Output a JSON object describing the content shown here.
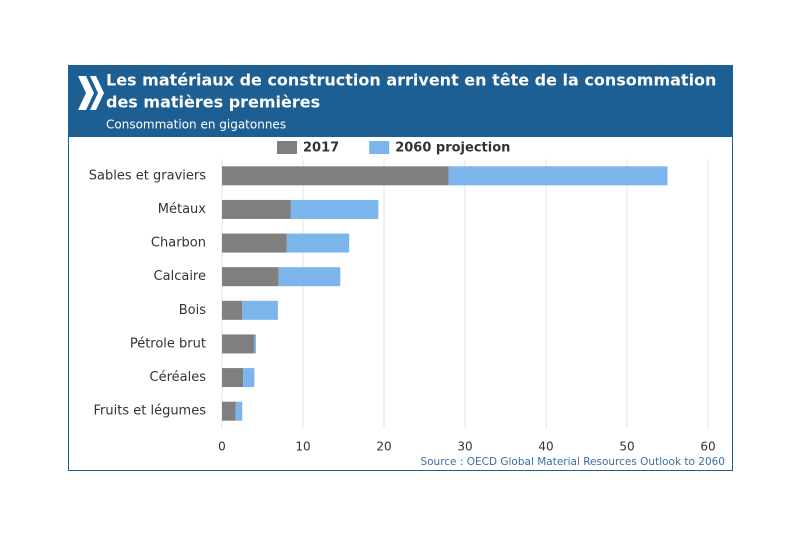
{
  "chart_data": {
    "type": "stacked-barh",
    "title": [
      "Les matériaux de construction arrivent en tête de la consommation",
      "des matières premières"
    ],
    "subtitle": "Consommation en gigatonnes",
    "source": "Source : OECD Global Material Resources Outlook to 2060",
    "categories": [
      "Sables et graviers",
      "Métaux",
      "Charbon",
      "Calcaire",
      "Bois",
      "Pétrole brut",
      "Céréales",
      "Fruits et légumes"
    ],
    "series": [
      {
        "name": "2017",
        "color": "#7f7f7f",
        "values": [
          28,
          8.5,
          8,
          7,
          2.5,
          4,
          2.6,
          1.7
        ]
      },
      {
        "name": "2060 projection",
        "color": "#7cb5ec",
        "values": [
          27,
          10.8,
          7.7,
          7.6,
          4.4,
          0.2,
          1.4,
          0.8
        ]
      }
    ],
    "xlim": [
      0,
      60
    ],
    "xticks": [
      0,
      10,
      20,
      30,
      40,
      50,
      60
    ],
    "grid": true
  }
}
